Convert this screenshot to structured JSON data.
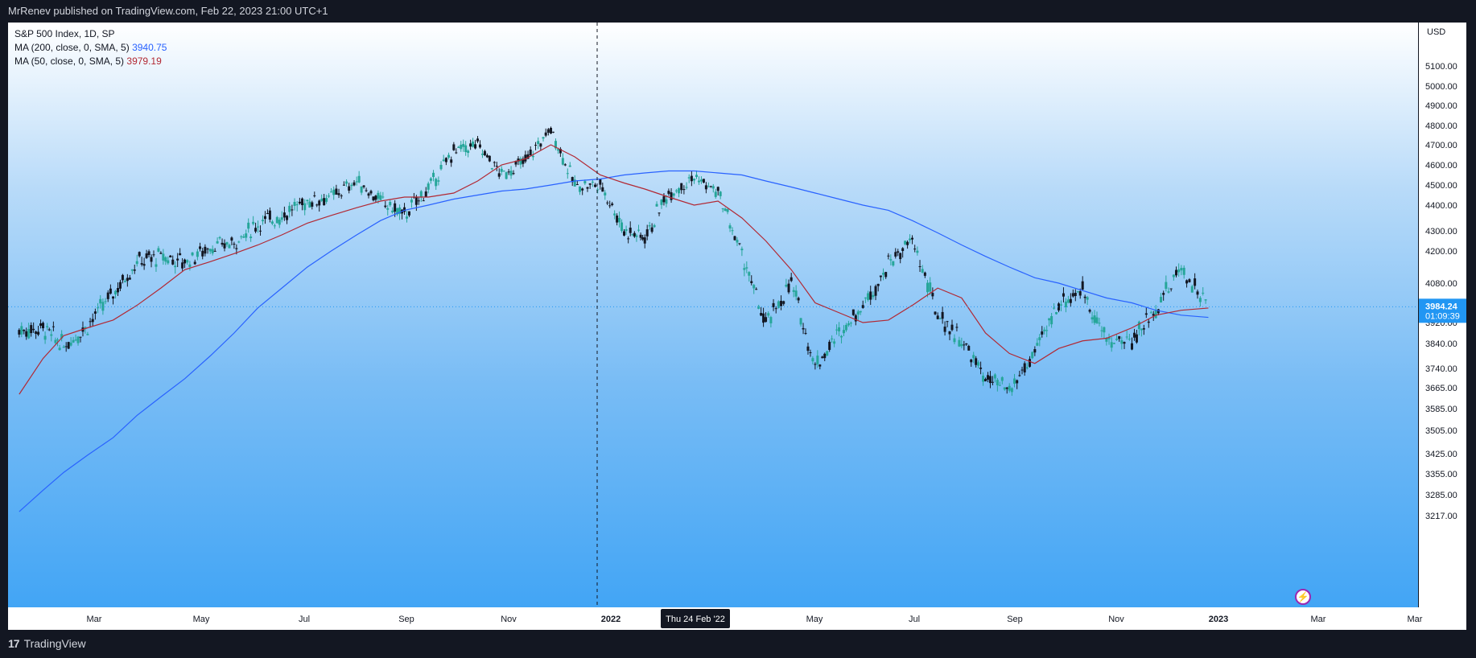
{
  "header": {
    "published_text": "MrRenev published on TradingView.com, Feb 22, 2023 21:00 UTC+1"
  },
  "legend": {
    "symbol": "S&P 500 Index, 1D, SP",
    "ma200_label": "MA (200, close, 0, SMA, 5)",
    "ma200_value": "3940.75",
    "ma50_label": "MA (50, close, 0, SMA, 5)",
    "ma50_value": "3979.19"
  },
  "price_axis": {
    "currency": "USD",
    "ticks": [
      "5100.00",
      "5000.00",
      "4900.00",
      "4800.00",
      "4700.00",
      "4600.00",
      "4500.00",
      "4400.00",
      "4300.00",
      "4200.00",
      "4080.00",
      "3920.00",
      "3840.00",
      "3740.00",
      "3665.00",
      "3585.00",
      "3505.00",
      "3425.00",
      "3355.00",
      "3285.00",
      "3217.00"
    ],
    "last_price": "3984.24",
    "countdown": "01:09:39"
  },
  "time_axis": {
    "ticks": [
      "Mar",
      "May",
      "Jul",
      "Sep",
      "Nov",
      "2022",
      "May",
      "Jul",
      "Sep",
      "Nov",
      "2023",
      "Mar",
      "Mar"
    ],
    "crosshair_label": "Thu 24 Feb '22"
  },
  "footer": {
    "brand": "TradingView"
  },
  "colors": {
    "up": "#26a69a",
    "down": "#131722",
    "ma200": "#2962ff",
    "ma50": "#b22833",
    "last_price": "#2196f3"
  },
  "chart_data": {
    "type": "line",
    "title": "S&P 500 Index, 1D, SP",
    "ylim": [
      3217,
      5100
    ],
    "x": [
      "2021-02-05",
      "2021-02-20",
      "2021-03-05",
      "2021-03-20",
      "2021-04-05",
      "2021-04-20",
      "2021-05-05",
      "2021-05-20",
      "2021-06-05",
      "2021-06-20",
      "2021-07-05",
      "2021-07-20",
      "2021-08-05",
      "2021-08-20",
      "2021-09-05",
      "2021-09-20",
      "2021-10-05",
      "2021-10-20",
      "2021-11-05",
      "2021-11-20",
      "2021-12-05",
      "2021-12-20",
      "2022-01-05",
      "2022-01-20",
      "2022-02-05",
      "2022-02-20",
      "2022-03-05",
      "2022-03-20",
      "2022-04-05",
      "2022-04-20",
      "2022-05-05",
      "2022-05-20",
      "2022-06-05",
      "2022-06-20",
      "2022-07-05",
      "2022-07-20",
      "2022-08-05",
      "2022-08-20",
      "2022-09-05",
      "2022-09-20",
      "2022-10-05",
      "2022-10-20",
      "2022-11-05",
      "2022-11-20",
      "2022-12-05",
      "2022-12-20",
      "2023-01-05",
      "2023-01-20",
      "2023-02-05",
      "2023-02-22"
    ],
    "series": [
      {
        "name": "S&P 500 Index",
        "values": [
          3890,
          3900,
          3830,
          3910,
          4040,
          4160,
          4180,
          4160,
          4220,
          4240,
          4330,
          4360,
          4420,
          4440,
          4520,
          4420,
          4360,
          4480,
          4670,
          4700,
          4550,
          4620,
          4780,
          4500,
          4500,
          4300,
          4270,
          4460,
          4540,
          4460,
          4190,
          3910,
          4080,
          3750,
          3880,
          3990,
          4150,
          4250,
          3950,
          3850,
          3700,
          3650,
          3800,
          4000,
          4050,
          3850,
          3850,
          3980,
          4140,
          3984
        ]
      },
      {
        "name": "MA (200, close, 0, SMA, 5)",
        "values": [
          3230,
          3300,
          3360,
          3420,
          3480,
          3560,
          3630,
          3700,
          3790,
          3880,
          3980,
          4060,
          4140,
          4200,
          4280,
          4340,
          4380,
          4400,
          4430,
          4450,
          4470,
          4480,
          4500,
          4520,
          4530,
          4550,
          4560,
          4570,
          4570,
          4560,
          4550,
          4520,
          4490,
          4460,
          4430,
          4400,
          4380,
          4340,
          4290,
          4230,
          4180,
          4140,
          4100,
          4080,
          4050,
          4020,
          4000,
          3970,
          3950,
          3941
        ]
      },
      {
        "name": "MA (50, close, 0, SMA, 5)",
        "values": [
          3640,
          3780,
          3870,
          3900,
          3930,
          3990,
          4060,
          4130,
          4160,
          4190,
          4230,
          4280,
          4330,
          4360,
          4390,
          4420,
          4440,
          4440,
          4460,
          4520,
          4600,
          4630,
          4700,
          4640,
          4550,
          4510,
          4480,
          4440,
          4400,
          4420,
          4350,
          4250,
          4130,
          4000,
          3960,
          3920,
          3930,
          3990,
          4060,
          4020,
          3880,
          3800,
          3760,
          3820,
          3850,
          3860,
          3900,
          3950,
          3970,
          3979
        ]
      }
    ]
  }
}
